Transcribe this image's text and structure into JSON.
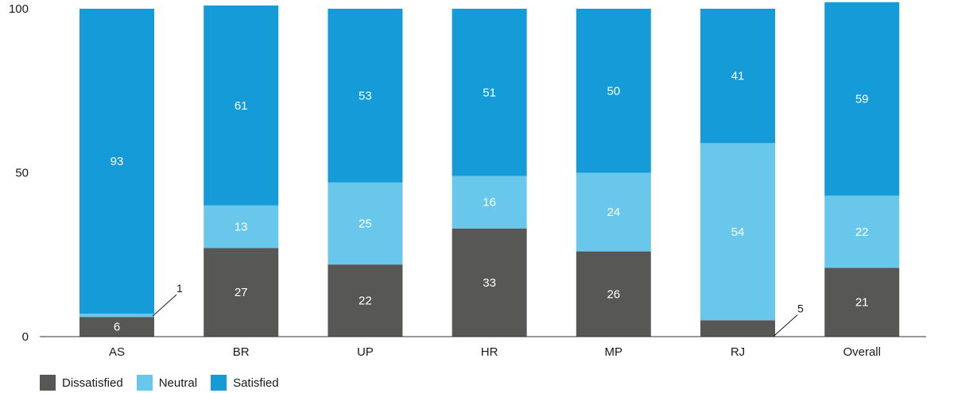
{
  "chart_data": {
    "type": "bar",
    "stacked": true,
    "categories": [
      "AS",
      "BR",
      "UP",
      "HR",
      "MP",
      "RJ",
      "Overall"
    ],
    "series": [
      {
        "name": "Dissatisfied",
        "color": "#575756",
        "values": [
          6,
          27,
          22,
          33,
          26,
          5,
          21
        ]
      },
      {
        "name": "Neutral",
        "color": "#6ac7ec",
        "values": [
          1,
          13,
          25,
          16,
          24,
          54,
          22
        ]
      },
      {
        "name": "Satisfied",
        "color": "#169bd9",
        "values": [
          93,
          61,
          53,
          51,
          50,
          41,
          59
        ]
      }
    ],
    "yticks": [
      0,
      50,
      100
    ],
    "ylim": [
      0,
      100
    ],
    "title": "",
    "xlabel": "",
    "ylabel": "",
    "grid": false,
    "legend_position": "bottom-left",
    "callouts": [
      {
        "category": "AS",
        "series": "Neutral",
        "text": "1"
      },
      {
        "category": "RJ",
        "series": "Dissatisfied",
        "text": "5"
      }
    ]
  }
}
